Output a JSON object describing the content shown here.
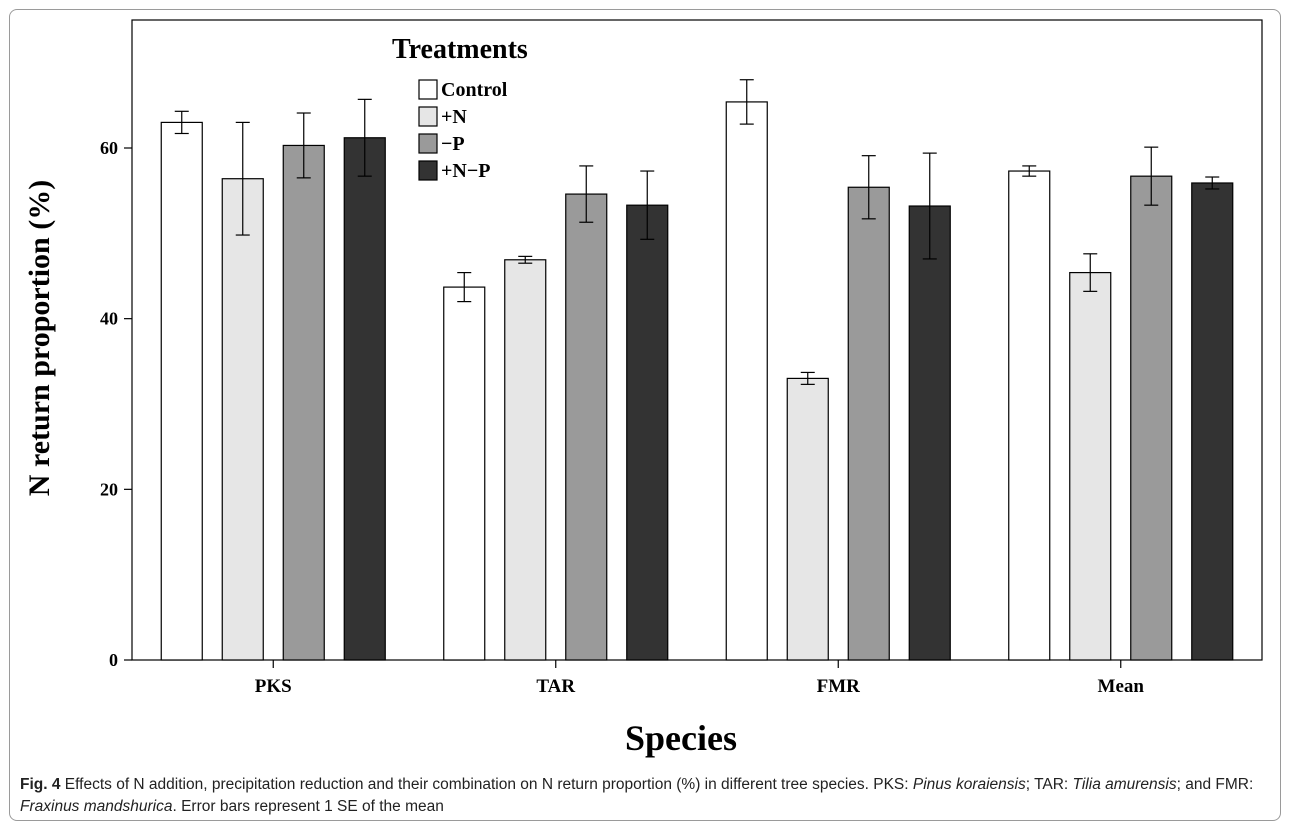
{
  "caption": {
    "label": "Fig. 4",
    "segments": [
      {
        "text": " Effects of N addition, precipitation reduction and their combination on N return proportion (%) in different tree species. PKS: ",
        "italic": false
      },
      {
        "text": "Pinus koraiensis",
        "italic": true
      },
      {
        "text": "; TAR: ",
        "italic": false
      },
      {
        "text": "Tilia amurensis",
        "italic": true
      },
      {
        "text": "; and FMR: ",
        "italic": false
      },
      {
        "text": "Fraxinus mandshurica",
        "italic": true
      },
      {
        "text": ". Error bars represent 1 SE of the mean",
        "italic": false
      }
    ]
  },
  "chart_data": {
    "type": "bar",
    "xlabel": "Species",
    "ylabel": "N return proportion (%)",
    "categories": [
      "PKS",
      "TAR",
      "FMR",
      "Mean"
    ],
    "ylim": [
      0,
      75
    ],
    "yticks": [
      0,
      20,
      40,
      60
    ],
    "legend": {
      "title": "Treatments",
      "placement": "top-left"
    },
    "series": [
      {
        "name": "Control",
        "color": "#ffffff",
        "values": [
          63.0,
          43.7,
          65.4,
          57.3
        ],
        "errors": [
          1.3,
          1.7,
          2.6,
          0.6
        ]
      },
      {
        "name": "+N",
        "color": "#e6e6e6",
        "values": [
          56.4,
          46.9,
          33.0,
          45.4
        ],
        "errors": [
          6.6,
          0.4,
          0.7,
          2.2
        ]
      },
      {
        "name": "−P",
        "color": "#9a9a9a",
        "values": [
          60.3,
          54.6,
          55.4,
          56.7
        ],
        "errors": [
          3.8,
          3.3,
          3.7,
          3.4
        ]
      },
      {
        "name": "+N−P",
        "color": "#333333",
        "values": [
          61.2,
          53.3,
          53.2,
          55.9
        ],
        "errors": [
          4.5,
          4.0,
          6.2,
          0.7
        ]
      }
    ]
  }
}
